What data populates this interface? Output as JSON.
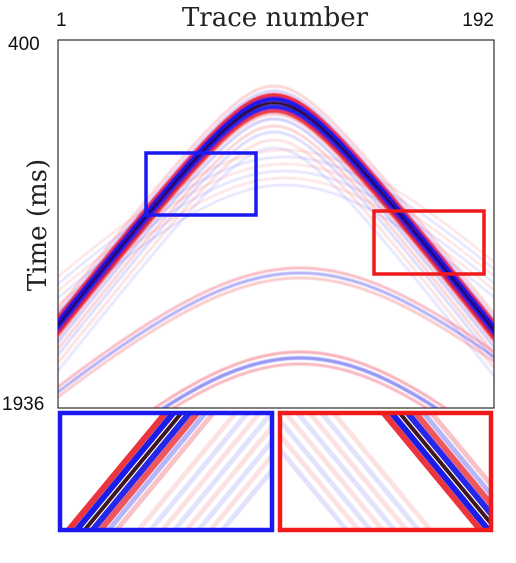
{
  "figure": {
    "x_axis_title": "Trace number",
    "y_axis_title": "Time (ms)",
    "x_tick_first": "1",
    "x_tick_last": "192",
    "y_tick_top": "400",
    "y_tick_bottom": "1936"
  },
  "colors": {
    "positive": "#e8101a",
    "negative": "#1010e8",
    "core": "#2a0008",
    "box_blue": "#1a1af0",
    "box_red": "#f01a1a"
  },
  "legend_boxes": [
    {
      "name": "blue-box",
      "color": "#1a1af0"
    },
    {
      "name": "red-box",
      "color": "#f01a1a"
    }
  ]
}
